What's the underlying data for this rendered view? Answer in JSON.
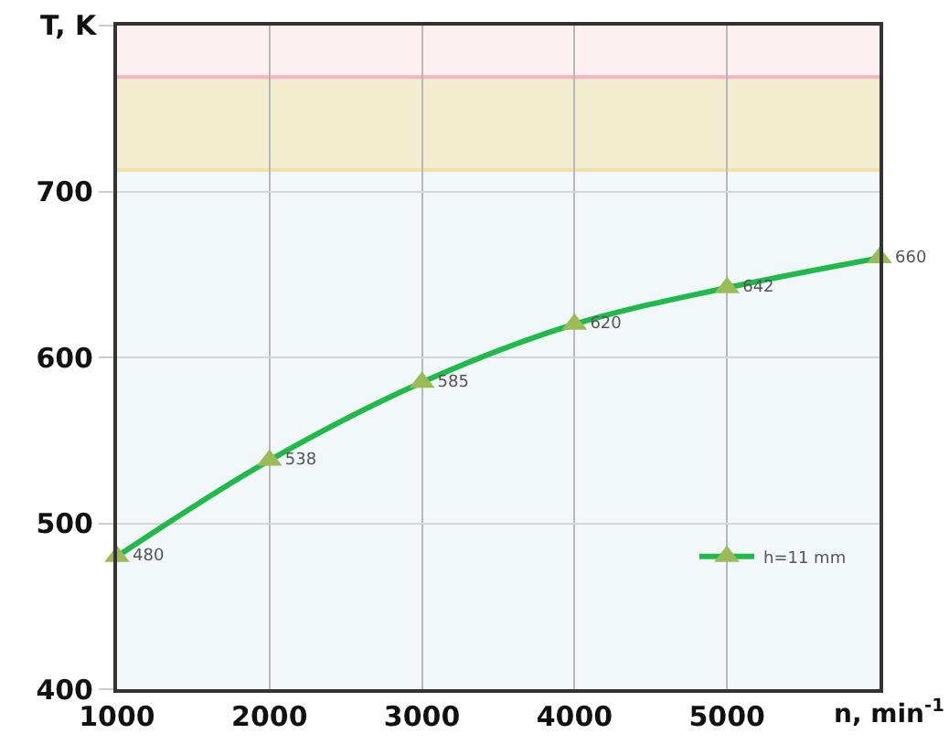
{
  "chart_data": {
    "type": "line",
    "xlabel": "n, min$^{-1}$",
    "ylabel": "T, K",
    "x": [
      1000,
      2000,
      3000,
      4000,
      5000,
      6000
    ],
    "series": [
      {
        "name": "h=11 mm",
        "color": "#1fba4a",
        "values": [
          480,
          538,
          585,
          620,
          642,
          660
        ]
      }
    ],
    "data_labels": true,
    "marker": "triangle",
    "line_style": "solid",
    "xlim": [
      1000,
      6000
    ],
    "xticks": [
      1000,
      2000,
      3000,
      4000,
      5000,
      {
        "value": 6000,
        "label": null
      }
    ],
    "ylim": [
      400,
      800
    ],
    "yticks": [
      400,
      500,
      600,
      700,
      {
        "value": 800,
        "label": null
      }
    ],
    "grid": true,
    "legend": "bottom right",
    "bands": [
      {
        "axis": "y",
        "from": 400,
        "to": 713,
        "label": null,
        "color": "#f2f7fa"
      },
      {
        "axis": "y",
        "from": 713,
        "to": 769,
        "label": null,
        "color": "#f3edcf"
      },
      {
        "axis": "y",
        "from": 769,
        "to": 800,
        "label": null,
        "color": "#fdf0f0"
      }
    ],
    "ref_lines": [
      {
        "axis": "y",
        "value": 769,
        "label": null,
        "color": "#f7b3c6",
        "line_style": "solid"
      },
      {
        "axis": "y",
        "value": 713,
        "label": null,
        "color": "#efe2a8",
        "line_style": "solid"
      }
    ]
  }
}
